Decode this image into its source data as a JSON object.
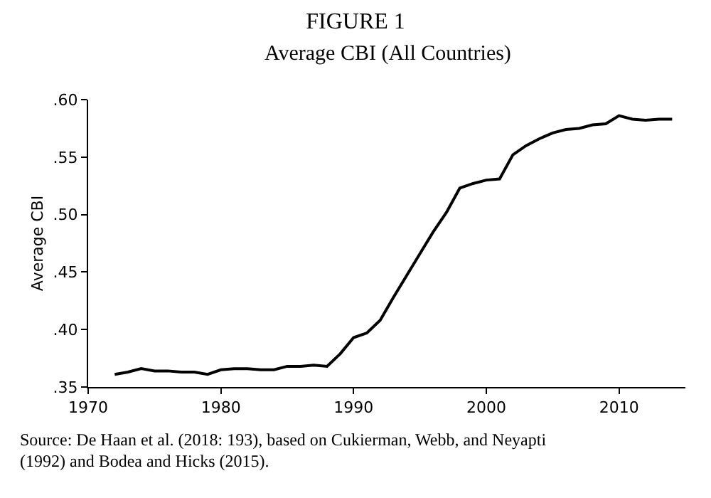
{
  "chart_data": {
    "type": "line",
    "title": "FIGURE 1",
    "subtitle": "Average CBI (All Countries)",
    "ylabel": "Average CBI",
    "annotations": [
      "Source: De Haan et al. (2018: 193), based on Cukierman, Webb, and Neyapti (1992) and Bodea and Hicks (2015)."
    ],
    "x": [
      1972,
      1973,
      1974,
      1975,
      1976,
      1977,
      1978,
      1979,
      1980,
      1981,
      1982,
      1983,
      1984,
      1985,
      1986,
      1987,
      1988,
      1989,
      1990,
      1991,
      1992,
      1993,
      1994,
      1995,
      1996,
      1997,
      1998,
      1999,
      2000,
      2001,
      2002,
      2003,
      2004,
      2005,
      2006,
      2007,
      2008,
      2009,
      2010,
      2011,
      2012,
      2013,
      2014
    ],
    "series": [
      {
        "color": "#000000",
        "values": [
          0.361,
          0.363,
          0.366,
          0.364,
          0.364,
          0.363,
          0.363,
          0.361,
          0.365,
          0.366,
          0.366,
          0.365,
          0.365,
          0.368,
          0.368,
          0.369,
          0.368,
          0.379,
          0.393,
          0.397,
          0.408,
          0.428,
          0.447,
          0.466,
          0.485,
          0.502,
          0.523,
          0.527,
          0.53,
          0.531,
          0.552,
          0.56,
          0.566,
          0.571,
          0.574,
          0.575,
          0.578,
          0.579,
          0.586,
          0.583,
          0.582,
          0.583,
          0.583
        ]
      }
    ],
    "xlim": [
      1970,
      2015
    ],
    "xticks": [
      1970,
      1980,
      1990,
      2000,
      2010
    ],
    "ylim": [
      0.35,
      0.6
    ],
    "yticks": [
      {
        "value": 0.35,
        "label": ".35"
      },
      {
        "value": 0.4,
        "label": ".40"
      },
      {
        "value": 0.45,
        "label": ".45"
      },
      {
        "value": 0.5,
        "label": ".50"
      },
      {
        "value": 0.55,
        "label": ".55"
      },
      {
        "value": 0.6,
        "label": ".60"
      }
    ],
    "grid": false,
    "marker": "none",
    "line_style": "solid"
  }
}
